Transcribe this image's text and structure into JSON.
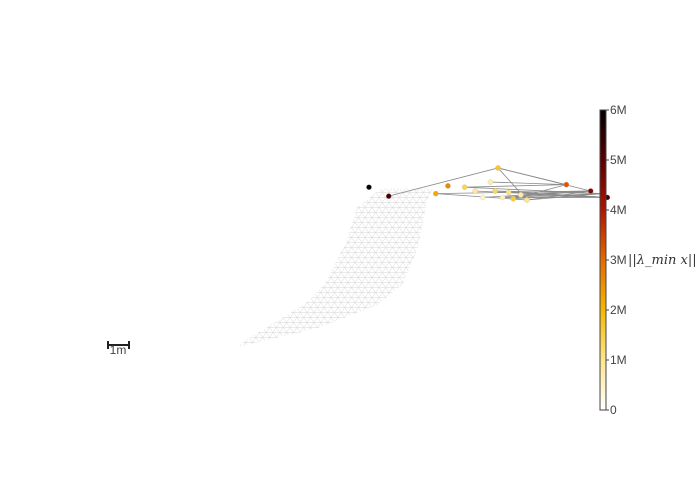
{
  "chart_data": {
    "type": "scatter",
    "title": "",
    "scale_bar": {
      "label": "1m",
      "length": 1
    },
    "colorbar": {
      "title": "||λ_min x||",
      "min": 0,
      "max": 6000000,
      "ticks": [
        {
          "value": 0,
          "label": "0"
        },
        {
          "value": 1000000,
          "label": "1M"
        },
        {
          "value": 2000000,
          "label": "2M"
        },
        {
          "value": 3000000,
          "label": "3M"
        },
        {
          "value": 4000000,
          "label": "4M"
        },
        {
          "value": 5000000,
          "label": "5M"
        },
        {
          "value": 6000000,
          "label": "6M"
        }
      ],
      "colors": [
        "#ffffff",
        "#fde68a",
        "#f5b800",
        "#e46a00",
        "#b01500",
        "#5a0000",
        "#000000"
      ]
    },
    "x_range": [
      -22.3,
      23.8
    ],
    "y_range": [
      -18.6,
      20.4
    ],
    "mesh_outline": [
      [
        -6.8,
        -6.7
      ],
      [
        -1.4,
        -5.2
      ],
      [
        2.5,
        -3.4
      ],
      [
        4.2,
        -1.8
      ],
      [
        5.2,
        1.0
      ],
      [
        5.8,
        4.6
      ],
      [
        6.2,
        5.7
      ],
      [
        2.8,
        5.7
      ],
      [
        1.2,
        4.2
      ],
      [
        0.5,
        1.5
      ],
      [
        -0.9,
        -1.7
      ],
      [
        -2.1,
        -3.2
      ],
      [
        -5.5,
        -5.7
      ],
      [
        -6.8,
        -6.7
      ]
    ],
    "mesh_base": [
      [
        -6.8,
        -6.7
      ],
      [
        6.2,
        -6.7
      ],
      [
        6.2,
        5.7
      ]
    ],
    "points": [
      {
        "x": 2.0,
        "y": 5.8,
        "value": 6000000
      },
      {
        "x": 3.3,
        "y": 5.1,
        "value": 5200000
      },
      {
        "x": 6.4,
        "y": 5.3,
        "value": 2200000
      },
      {
        "x": 7.2,
        "y": 5.9,
        "value": 2600000
      },
      {
        "x": 8.3,
        "y": 5.8,
        "value": 1400000
      },
      {
        "x": 9.0,
        "y": 5.5,
        "value": 900000
      },
      {
        "x": 9.5,
        "y": 5.0,
        "value": 500000
      },
      {
        "x": 10.0,
        "y": 6.2,
        "value": 700000
      },
      {
        "x": 10.3,
        "y": 5.5,
        "value": 1300000
      },
      {
        "x": 10.5,
        "y": 7.3,
        "value": 1700000
      },
      {
        "x": 10.8,
        "y": 5.0,
        "value": 600000
      },
      {
        "x": 11.2,
        "y": 5.4,
        "value": 1100000
      },
      {
        "x": 11.5,
        "y": 4.9,
        "value": 1600000
      },
      {
        "x": 12.0,
        "y": 5.2,
        "value": 800000
      },
      {
        "x": 12.4,
        "y": 4.8,
        "value": 1000000
      },
      {
        "x": 15.0,
        "y": 6.0,
        "value": 3200000
      },
      {
        "x": 16.6,
        "y": 5.5,
        "value": 4600000
      },
      {
        "x": 17.4,
        "y": 5.3,
        "value": 4900000
      },
      {
        "x": 17.7,
        "y": 5.0,
        "value": 5200000
      }
    ],
    "edges": [
      [
        2,
        14
      ],
      [
        2,
        16
      ],
      [
        4,
        15
      ],
      [
        4,
        17
      ],
      [
        5,
        18
      ],
      [
        6,
        16
      ],
      [
        7,
        15
      ],
      [
        8,
        17
      ],
      [
        8,
        18
      ],
      [
        9,
        16
      ],
      [
        9,
        14
      ],
      [
        10,
        17
      ],
      [
        11,
        16
      ],
      [
        11,
        18
      ],
      [
        12,
        17
      ],
      [
        12,
        15
      ],
      [
        13,
        16
      ],
      [
        13,
        18
      ],
      [
        9,
        1
      ],
      [
        9,
        15
      ],
      [
        14,
        16
      ],
      [
        14,
        17
      ],
      [
        10,
        16
      ],
      [
        10,
        18
      ]
    ]
  }
}
